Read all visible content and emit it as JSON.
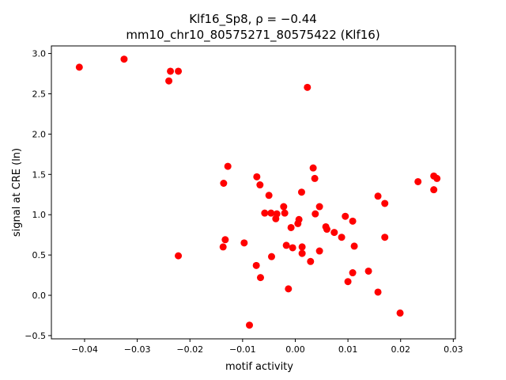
{
  "chart_data": {
    "type": "scatter",
    "title_line1": "Klf16_Sp8, ρ = −0.44",
    "title_line2": "mm10_chr10_80575271_80575422 (Klf16)",
    "xlabel": "motif activity",
    "ylabel": "signal at CRE (ln)",
    "xlim": [
      -0.0463,
      0.0304
    ],
    "ylim": [
      -0.54,
      3.094
    ],
    "xticks": [
      -0.04,
      -0.03,
      -0.02,
      -0.01,
      0.0,
      0.01,
      0.02,
      0.03
    ],
    "xtick_labels": [
      "−0.04",
      "−0.03",
      "−0.02",
      "−0.01",
      "0.00",
      "0.01",
      "0.02",
      "0.03"
    ],
    "yticks": [
      -0.5,
      0.0,
      0.5,
      1.0,
      1.5,
      2.0,
      2.5,
      3.0
    ],
    "ytick_labels": [
      "−0.5",
      "0.0",
      "0.5",
      "1.0",
      "1.5",
      "2.0",
      "2.5",
      "3.0"
    ],
    "grid": false,
    "marker_color": "#ff0000",
    "points": [
      [
        -0.041,
        2.83
      ],
      [
        -0.0325,
        2.93
      ],
      [
        -0.0237,
        2.78
      ],
      [
        -0.0222,
        2.78
      ],
      [
        -0.024,
        2.66
      ],
      [
        0.0023,
        2.58
      ],
      [
        -0.0128,
        1.6
      ],
      [
        -0.0136,
        1.39
      ],
      [
        -0.0073,
        1.47
      ],
      [
        -0.0067,
        1.37
      ],
      [
        -0.005,
        1.24
      ],
      [
        0.0034,
        1.58
      ],
      [
        0.0037,
        1.45
      ],
      [
        0.0012,
        1.28
      ],
      [
        -0.0022,
        1.1
      ],
      [
        0.0046,
        1.1
      ],
      [
        -0.0058,
        1.02
      ],
      [
        -0.0046,
        1.02
      ],
      [
        -0.0035,
        1.01
      ],
      [
        -0.0037,
        0.95
      ],
      [
        -0.002,
        1.02
      ],
      [
        0.0007,
        0.94
      ],
      [
        0.0005,
        0.89
      ],
      [
        -0.0008,
        0.84
      ],
      [
        0.0038,
        1.01
      ],
      [
        0.0095,
        0.98
      ],
      [
        0.0109,
        0.92
      ],
      [
        0.0058,
        0.85
      ],
      [
        0.006,
        0.82
      ],
      [
        0.0074,
        0.78
      ],
      [
        0.0088,
        0.72
      ],
      [
        0.0157,
        1.23
      ],
      [
        0.017,
        1.14
      ],
      [
        0.017,
        0.72
      ],
      [
        0.0112,
        0.61
      ],
      [
        -0.0133,
        0.69
      ],
      [
        -0.0137,
        0.6
      ],
      [
        -0.0097,
        0.65
      ],
      [
        -0.0017,
        0.62
      ],
      [
        -0.0005,
        0.59
      ],
      [
        0.0013,
        0.6
      ],
      [
        0.0013,
        0.52
      ],
      [
        0.0046,
        0.55
      ],
      [
        -0.0045,
        0.48
      ],
      [
        -0.0222,
        0.49
      ],
      [
        0.0029,
        0.42
      ],
      [
        -0.0074,
        0.37
      ],
      [
        -0.0066,
        0.22
      ],
      [
        0.0139,
        0.3
      ],
      [
        0.0109,
        0.28
      ],
      [
        0.01,
        0.17
      ],
      [
        -0.0013,
        0.08
      ],
      [
        0.0157,
        0.04
      ],
      [
        -0.0087,
        -0.37
      ],
      [
        0.0199,
        -0.22
      ],
      [
        0.0233,
        1.41
      ],
      [
        0.0263,
        1.48
      ],
      [
        0.0269,
        1.45
      ],
      [
        0.0263,
        1.31
      ]
    ]
  }
}
